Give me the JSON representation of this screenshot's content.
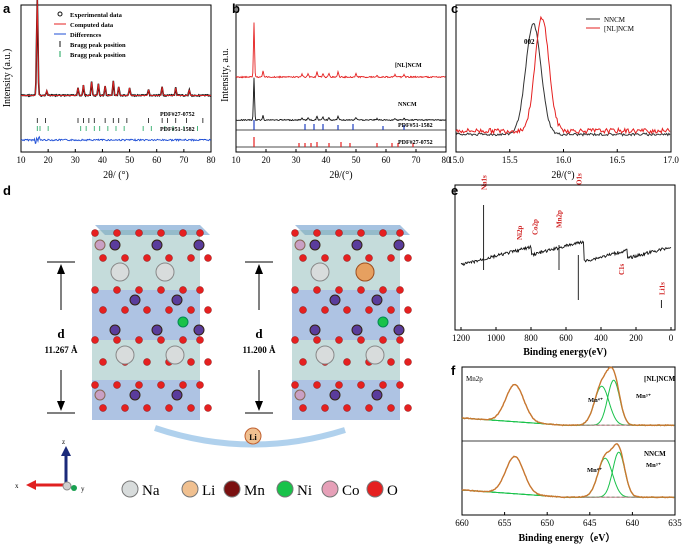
{
  "panels": {
    "a": {
      "letter": "a",
      "ylabel": "Intensity (a.u.)",
      "xlabel": "2θ/ (°)",
      "xticks": [
        "10",
        "20",
        "30",
        "40",
        "50",
        "60",
        "70",
        "80"
      ],
      "legend": [
        "Experimental data",
        "Computed data",
        "Differences",
        "Bragg peak position",
        "Bragg peak position"
      ],
      "pdf1": "PDF#27-0752",
      "pdf2": "PDF#51-1582"
    },
    "b": {
      "letter": "b",
      "ylabel": "Intensity,  a.u.",
      "xlabel": "2θ/(°)",
      "xticks": [
        "10",
        "20",
        "30",
        "40",
        "50",
        "60",
        "70",
        "80"
      ],
      "series": [
        "[NL]NCM",
        "NNCM",
        "PDF#51-1582",
        "PDF#27-0752"
      ]
    },
    "c": {
      "letter": "c",
      "xlabel": "2θ/(°)",
      "xticks": [
        "15.0",
        "15.5",
        "16.0",
        "16.5",
        "17.0"
      ],
      "legend": [
        "NNCM",
        "[NL]NCM"
      ],
      "peak": "002"
    },
    "d": {
      "letter": "d",
      "d_label": "d",
      "d1": "11.267 Å",
      "d2": "11.200 Å",
      "axis_z": "z",
      "axis_x": "x",
      "axis_y": "y",
      "elements": [
        "Na",
        "Li",
        "Mn",
        "Ni",
        "Co",
        "O"
      ]
    },
    "e": {
      "letter": "e",
      "xlabel": "Binding energy(eV)",
      "xticks": [
        "1200",
        "1000",
        "800",
        "600",
        "400",
        "200",
        "0"
      ],
      "peaks": [
        "Na1s",
        "Ni2p",
        "Co2p",
        "Mn2p",
        "O1s",
        "C1s",
        "Li1s"
      ]
    },
    "f": {
      "letter": "f",
      "xlabel": "Binding energy（eV）",
      "xticks": [
        "660",
        "655",
        "650",
        "645",
        "640",
        "635"
      ],
      "title": "Mn2p",
      "top": "[NL]NCM",
      "bottom": "NNCM",
      "mn4": "Mn⁴⁺",
      "mn3": "Mn³⁺"
    }
  },
  "chart_data": [
    {
      "type": "line",
      "id": "a",
      "title": "",
      "xlabel": "2θ/ (°)",
      "ylabel": "Intensity (a.u.)",
      "xlim": [
        10,
        80
      ],
      "series": [
        {
          "name": "Experimental data",
          "x": [
            10,
            16,
            17,
            20,
            31,
            33,
            36,
            38,
            41,
            44,
            46,
            50,
            57,
            62,
            67,
            72,
            80
          ],
          "y": [
            0.05,
            1.0,
            0.08,
            0.06,
            0.09,
            0.11,
            0.13,
            0.12,
            0.1,
            0.14,
            0.09,
            0.08,
            0.07,
            0.09,
            0.08,
            0.07,
            0.06
          ]
        },
        {
          "name": "Computed data",
          "x": [
            10,
            16,
            17,
            20,
            31,
            33,
            36,
            38,
            41,
            44,
            46,
            50,
            57,
            62,
            67,
            72,
            80
          ],
          "y": [
            0.05,
            1.0,
            0.08,
            0.06,
            0.09,
            0.11,
            0.13,
            0.12,
            0.1,
            0.14,
            0.09,
            0.08,
            0.07,
            0.09,
            0.08,
            0.07,
            0.06
          ]
        }
      ]
    },
    {
      "type": "line",
      "id": "b",
      "xlabel": "2θ/(°)",
      "ylabel": "Intensity,  a.u.",
      "xlim": [
        10,
        80
      ],
      "series": [
        {
          "name": "[NL]NCM",
          "peaks_x": [
            16,
            19,
            32,
            34,
            37,
            39,
            41,
            44,
            50,
            57,
            63,
            66
          ]
        },
        {
          "name": "NNCM",
          "peaks_x": [
            16,
            19,
            32,
            34,
            37,
            39,
            41,
            44,
            50,
            57,
            63,
            66
          ]
        }
      ]
    },
    {
      "type": "line",
      "id": "c",
      "xlabel": "2θ/(°)",
      "xlim": [
        15.0,
        17.0
      ],
      "series": [
        {
          "name": "NNCM",
          "peak_x": 15.72
        },
        {
          "name": "[NL]NCM",
          "peak_x": 15.8
        }
      ]
    },
    {
      "type": "line",
      "id": "e",
      "xlabel": "Binding energy(eV)",
      "xlim": [
        1200,
        0
      ],
      "peaks": [
        {
          "label": "Na1s",
          "x": 1071
        },
        {
          "label": "Ni2p",
          "x": 870
        },
        {
          "label": "Co2p",
          "x": 780
        },
        {
          "label": "Mn2p",
          "x": 642
        },
        {
          "label": "O1s",
          "x": 530
        },
        {
          "label": "C1s",
          "x": 285
        },
        {
          "label": "Li1s",
          "x": 55
        }
      ]
    },
    {
      "type": "line",
      "id": "f",
      "xlabel": "Binding energy（eV）",
      "xlim": [
        660,
        635
      ],
      "series": [
        {
          "name": "[NL]NCM",
          "peaks_x": [
            653.8,
            642.2,
            643.6
          ]
        },
        {
          "name": "NNCM",
          "peaks_x": [
            653.8,
            641.8,
            643.4
          ]
        }
      ]
    }
  ],
  "colors": {
    "red": "#e52020",
    "black": "#111111",
    "blue": "#1f4fd6",
    "green": "#19c24a",
    "purple": "#b088a0",
    "orange": "#c87830",
    "navy": "#1b2a7a"
  }
}
